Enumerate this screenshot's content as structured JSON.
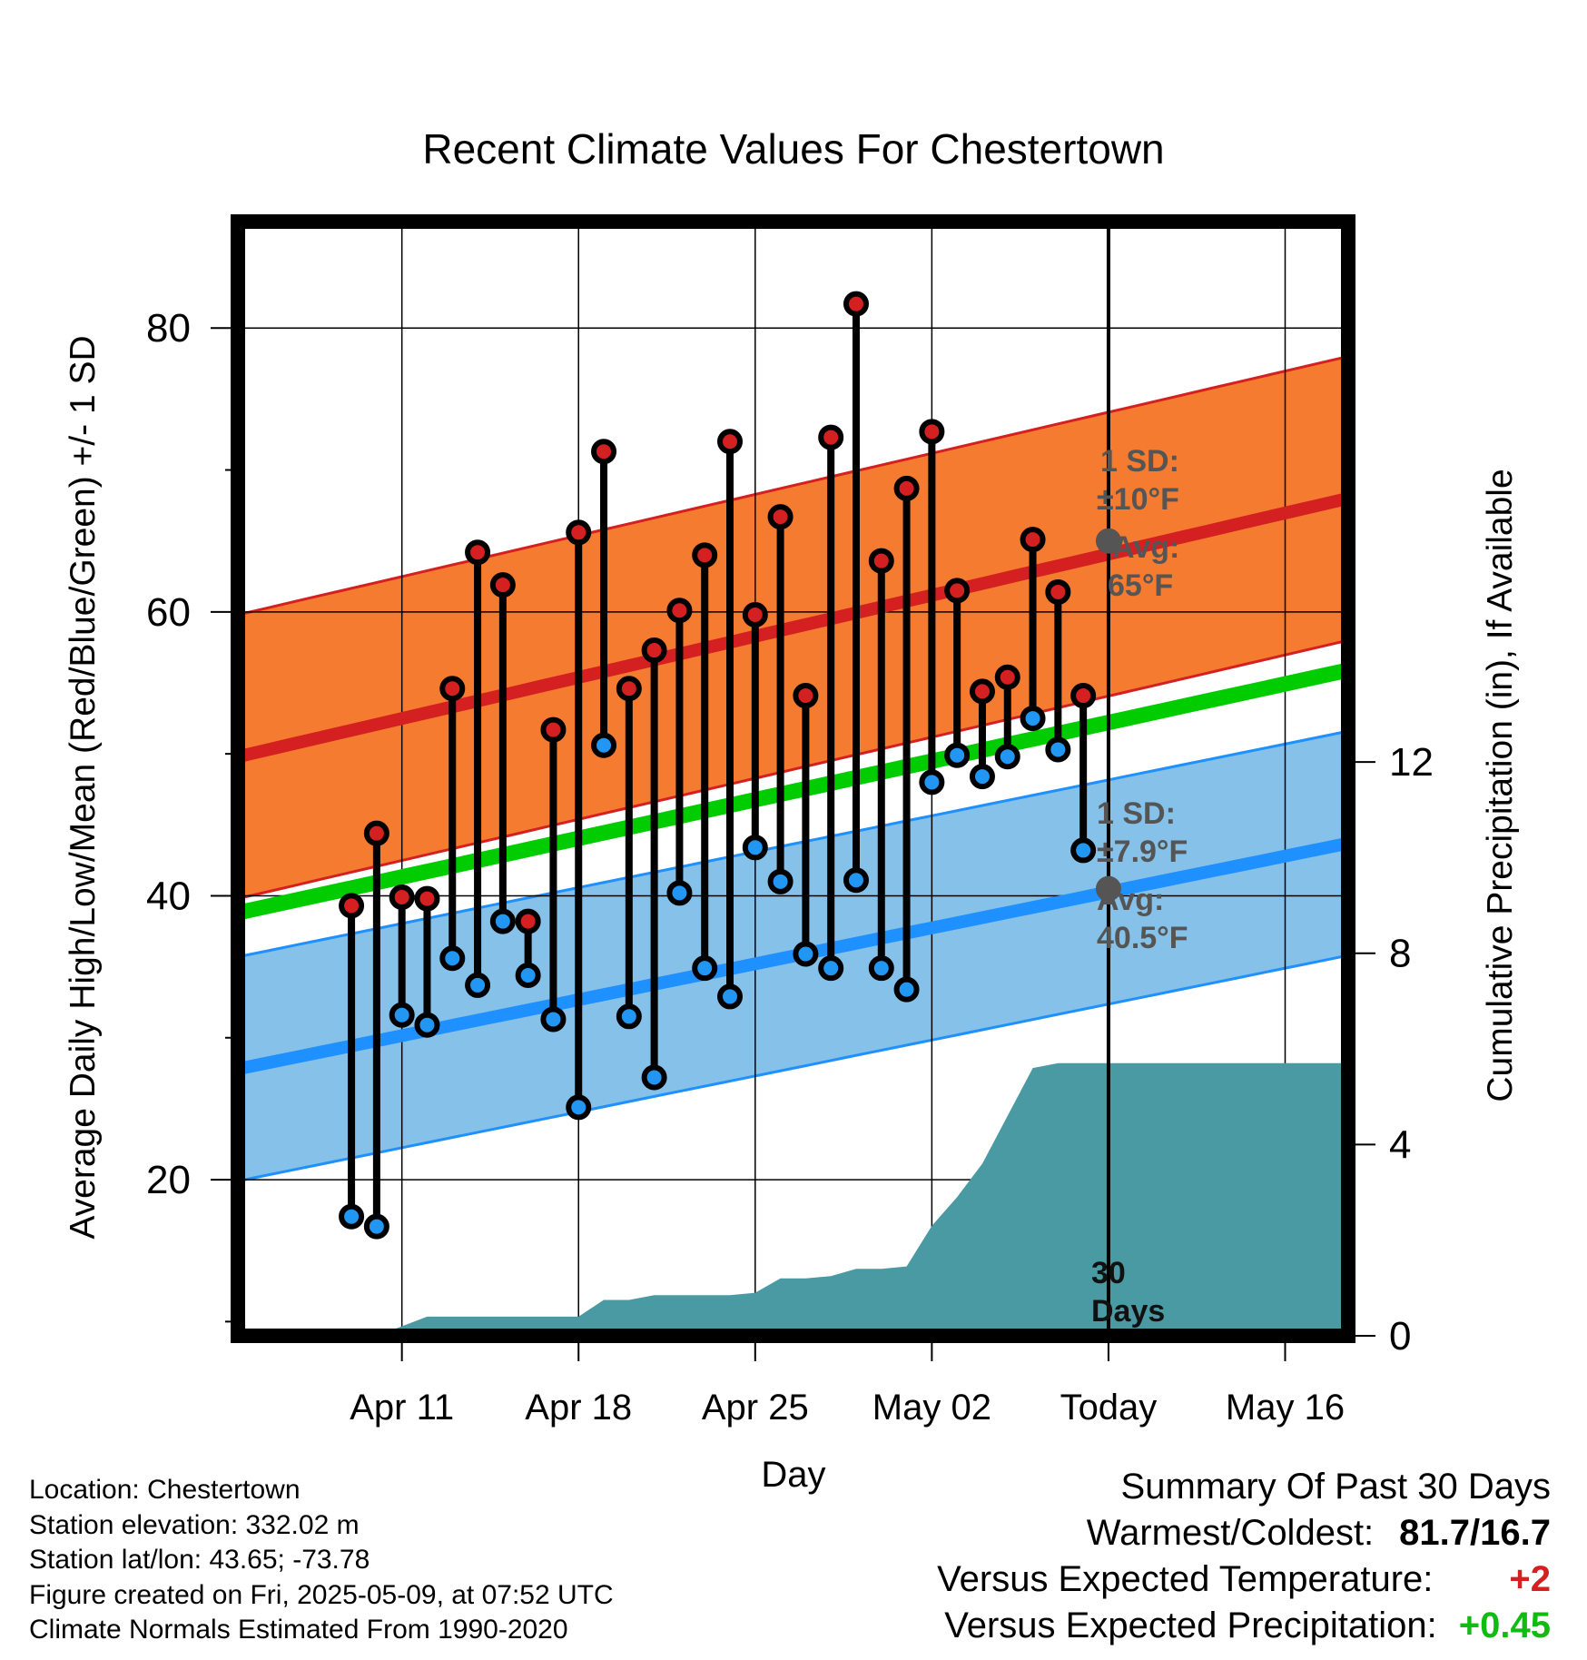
{
  "chart_data": {
    "type": "line",
    "title": "Recent Climate Values For Chestertown",
    "xlabel": "Day",
    "ylabel": "Average Daily High/Low/Mean (Red/Blue/Green) +/- 1 SD",
    "y2label": "Cumulative Precipitation (in), If Available",
    "ylim": [
      9,
      87.5
    ],
    "y2lim": [
      0,
      23.3
    ],
    "xlim": [
      -34.5,
      9.5
    ],
    "yticks": [
      20,
      40,
      60,
      80
    ],
    "yticks_minor": [
      10,
      30,
      50,
      70
    ],
    "y2ticks": [
      0,
      4,
      8,
      12
    ],
    "x_ticks": [
      {
        "x": -28,
        "label": "Apr 11"
      },
      {
        "x": -21,
        "label": "Apr 18"
      },
      {
        "x": -14,
        "label": "Apr 25"
      },
      {
        "x": -7,
        "label": "May 02"
      },
      {
        "x": 0,
        "label": "Today"
      },
      {
        "x": 7,
        "label": "May 16"
      }
    ],
    "days_x": [
      -30,
      -29,
      -28,
      -27,
      -26,
      -25,
      -24,
      -23,
      -22,
      -21,
      -20,
      -19,
      -18,
      -17,
      -16,
      -15,
      -14,
      -13,
      -12,
      -11,
      -10,
      -9,
      -8,
      -7,
      -6,
      -5,
      -4,
      -3,
      -2,
      -1
    ],
    "highs": [
      39.3,
      44.4,
      39.9,
      39.8,
      54.6,
      64.2,
      61.9,
      38.2,
      51.7,
      65.6,
      71.3,
      54.6,
      57.3,
      60.1,
      64.0,
      72.0,
      59.8,
      66.7,
      54.1,
      72.3,
      81.7,
      63.6,
      68.7,
      72.7,
      61.5,
      54.4,
      55.4,
      65.1,
      61.4,
      54.1
    ],
    "lows": [
      17.4,
      16.7,
      31.6,
      30.9,
      35.6,
      33.7,
      38.2,
      34.4,
      31.3,
      25.1,
      50.6,
      31.5,
      27.2,
      40.2,
      34.9,
      32.9,
      43.4,
      41.0,
      35.9,
      34.9,
      41.1,
      34.9,
      33.4,
      48.0,
      49.9,
      48.4,
      49.8,
      52.5,
      50.3,
      43.2
    ],
    "normal_high": {
      "x": [
        -34.5,
        9.5
      ],
      "start": 49.8,
      "end": 68.0,
      "today": 65
    },
    "normal_high_sd": 10,
    "normal_low": {
      "x": [
        -34.5,
        9.5
      ],
      "start": 27.8,
      "end": 43.7,
      "today": 40.5
    },
    "normal_low_sd": 7.9,
    "normal_mean": {
      "x": [
        -34.5,
        9.5
      ],
      "start": 38.8,
      "end": 55.9
    },
    "precip_cumulative": {
      "x": [
        -29,
        -28,
        -27,
        -21,
        -20,
        -19,
        -18,
        -15,
        -14,
        -13,
        -12,
        -11,
        -10,
        -9,
        -8,
        -7,
        -6,
        -5,
        -4,
        -3,
        -2,
        -1,
        0,
        9.5
      ],
      "y": [
        0,
        0.2,
        0.4,
        0.4,
        0.75,
        0.75,
        0.85,
        0.85,
        0.9,
        1.2,
        1.2,
        1.25,
        1.4,
        1.4,
        1.45,
        2.3,
        2.9,
        3.6,
        4.6,
        5.6,
        5.7,
        5.7,
        5.7,
        5.7
      ]
    },
    "grid": true,
    "colors": {
      "high_band": "#f47b30",
      "high_line": "#d42020",
      "low_band": "#85c1e9",
      "low_line": "#1e90ff",
      "mean_line": "#00cc00",
      "precip": "#4a9aa3",
      "high_marker": "#d42020",
      "low_marker": "#2196f3",
      "annotation": "#555555"
    },
    "annotations": {
      "high_sd_line1": "1 SD:",
      "high_sd_line2": "±10°F",
      "high_avg_line1": "Avg:",
      "high_avg_line2": "65°F",
      "low_sd_line1": "1 SD:",
      "low_sd_line2": "±7.9°F",
      "low_avg_line1": "Avg:",
      "low_avg_line2": "40.5°F",
      "days_line1": "30",
      "days_line2": "Days"
    }
  },
  "info": {
    "location": "Location: Chestertown",
    "elevation": "Station elevation: 332.02 m",
    "latlon": "Station lat/lon: 43.65; -73.78",
    "created": "Figure created on Fri, 2025-05-09, at 07:52 UTC",
    "normals": "Climate Normals Estimated From 1990-2020"
  },
  "summary": {
    "heading": "Summary Of Past 30 Days",
    "warm_cold_label": "Warmest/Coldest:",
    "warm_cold_value": "81.7/16.7",
    "temp_label": "Versus Expected Temperature:",
    "temp_value": "+2",
    "precip_label": "Versus Expected Precipitation:",
    "precip_value": "+0.45"
  }
}
